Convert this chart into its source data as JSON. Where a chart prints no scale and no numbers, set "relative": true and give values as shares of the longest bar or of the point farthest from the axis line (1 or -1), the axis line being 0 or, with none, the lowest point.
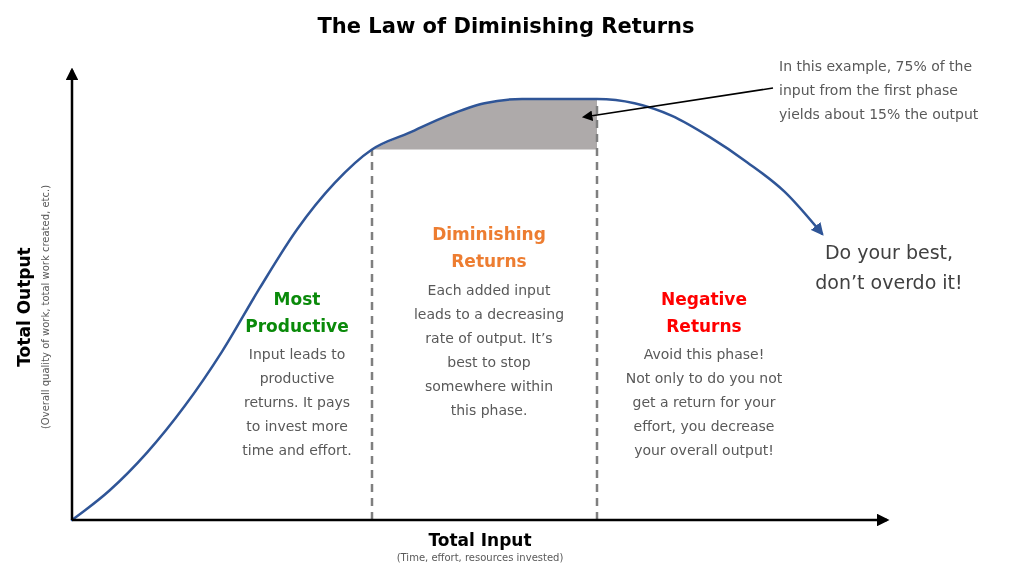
{
  "chart_data": {
    "type": "line",
    "title": "The Law of Diminishing Returns",
    "xlabel": "Total Input",
    "ylabel": "Total Output",
    "relative": true,
    "categories": [
      null,
      null,
      null,
      null,
      null,
      null,
      null,
      null,
      null,
      null,
      null,
      null,
      null,
      null,
      null,
      null,
      null,
      null,
      null,
      null,
      null
    ],
    "series": [
      {
        "type": "area",
        "color": "#aeaaaa",
        "values": [
          null,
          null,
          null,
          null,
          null,
          null,
          null,
          null,
          0.88,
          0.92,
          0.96,
          0.99,
          1.0,
          1.0,
          1.0,
          null,
          null,
          null,
          null,
          null,
          null
        ]
      },
      {
        "color": "#2f5597",
        "values": [
          0,
          0.07,
          0.16,
          0.27,
          0.4,
          0.55,
          0.69,
          0.8,
          0.88,
          0.92,
          0.96,
          0.99,
          1.0,
          1.0,
          1.0,
          0.99,
          0.96,
          0.91,
          0.85,
          0.78,
          0.68
        ]
      }
    ],
    "annotations": [
      "Most\nProductive",
      "Input leads to\nproductive\nreturns. It pays\nto invest more\ntime and effort.",
      "Diminishing\nReturns",
      "Each added input\nleads to a decreasing\nrate of output. It’s\nbest to stop\nsomewhere within\nthis phase.",
      "Negative\nReturns",
      "Avoid this phase!\nNot only to do you not\nget a return for your\neffort, you decrease\nyour overall output!",
      "Do your best,\ndon’t overdo it!",
      "In this example, 75% of the\ninput from the first phase\nyields about 15% the output",
      "(Overall quality of work, total work created, etc.)",
      "(Time, effort, resources invested)"
    ]
  }
}
